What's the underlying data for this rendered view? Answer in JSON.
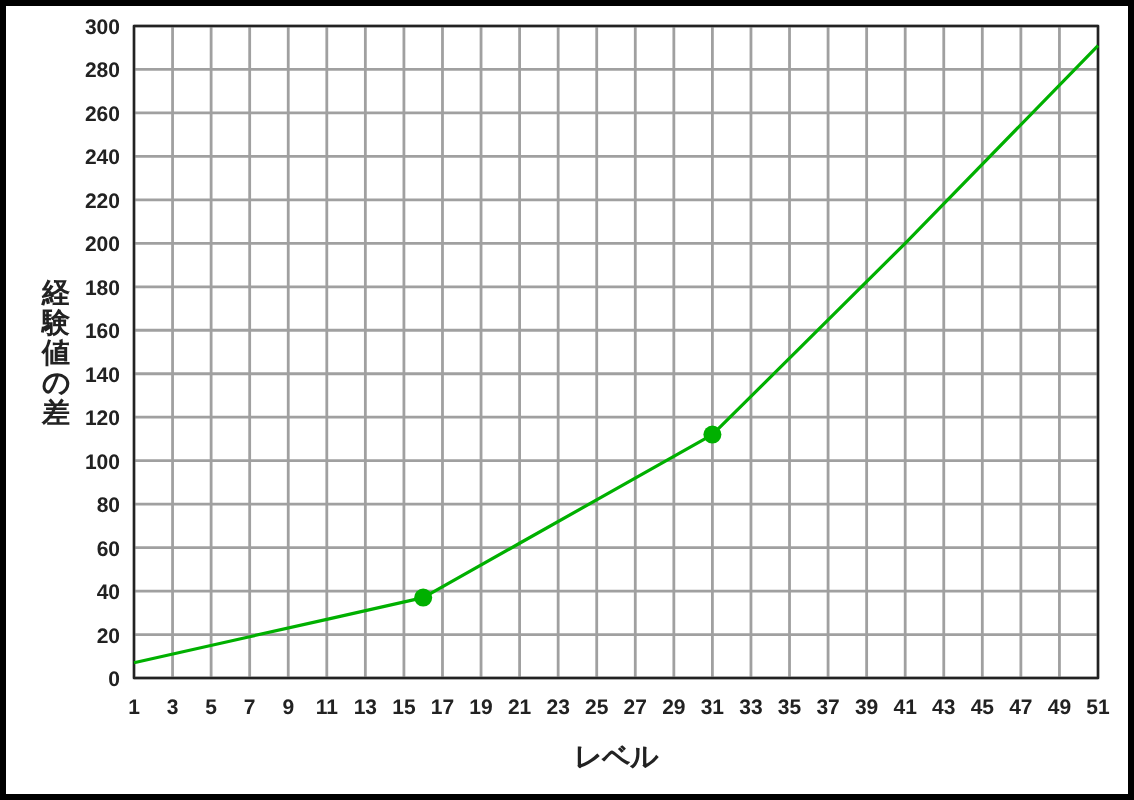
{
  "chart_data": {
    "type": "line",
    "xlabel": "レベル",
    "ylabel": "経験値の差",
    "xlim": [
      1,
      51
    ],
    "xticks": [
      1,
      3,
      5,
      7,
      9,
      11,
      13,
      15,
      17,
      19,
      21,
      23,
      25,
      27,
      29,
      31,
      33,
      35,
      37,
      39,
      41,
      43,
      45,
      47,
      49,
      51
    ],
    "ylim": [
      0,
      300
    ],
    "yticks": [
      0,
      20,
      40,
      60,
      80,
      100,
      120,
      140,
      160,
      180,
      200,
      220,
      240,
      260,
      280,
      300
    ],
    "grid": true,
    "series": [
      {
        "color": "#00b000",
        "x": [
          1,
          7,
          11,
          16,
          21,
          31,
          41,
          51
        ],
        "values": [
          7,
          19,
          27,
          37,
          62,
          112,
          200,
          291
        ]
      },
      {
        "type": "scatter",
        "marker": "circle",
        "color": "#00b000",
        "x": [
          16,
          31
        ],
        "values": [
          37,
          112
        ]
      }
    ]
  }
}
